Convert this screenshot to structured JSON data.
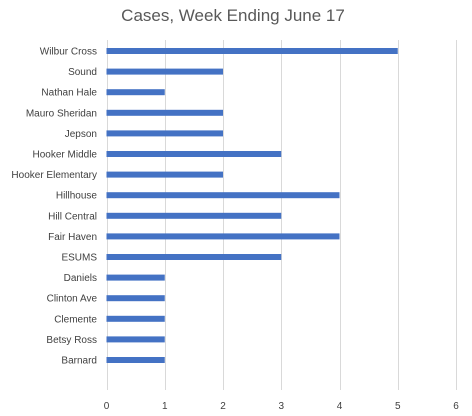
{
  "chart_data": {
    "type": "bar",
    "orientation": "horizontal",
    "title": "Cases, Week Ending June 17",
    "xlabel": "",
    "ylabel": "",
    "categories": [
      "Wilbur Cross",
      "Sound",
      "Nathan Hale",
      "Mauro Sheridan",
      "Jepson",
      "Hooker Middle",
      "Hooker Elementary",
      "Hillhouse",
      "Hill Central",
      "Fair Haven",
      "ESUMS",
      "Daniels",
      "Clinton Ave",
      "Clemente",
      "Betsy Ross",
      "Barnard"
    ],
    "values": [
      5,
      2,
      1,
      2,
      2,
      3,
      2,
      4,
      3,
      4,
      3,
      1,
      1,
      1,
      1,
      1
    ],
    "xlim": [
      0,
      6
    ],
    "xticks": [
      "0",
      "1",
      "2",
      "3",
      "4",
      "5",
      "6"
    ],
    "grid": true,
    "legend": "none",
    "bar_color": "#4472c4"
  }
}
